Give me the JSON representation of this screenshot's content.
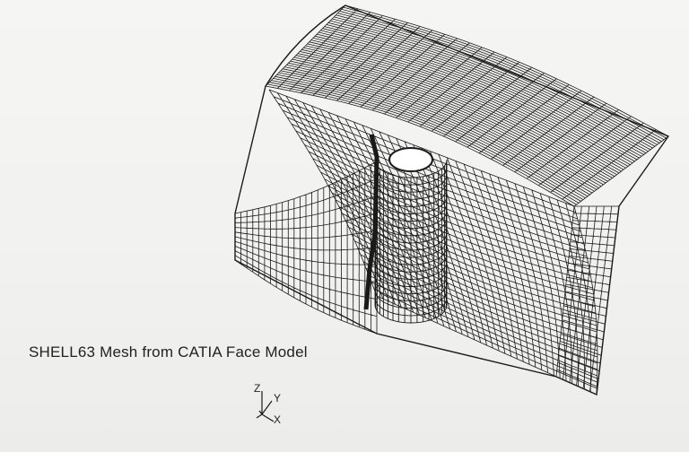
{
  "caption": "SHELL63 Mesh  from CATIA Face Model",
  "triad": {
    "z_label": "Z",
    "y_label": "Y",
    "x_label": "X"
  },
  "colors": {
    "mesh_line": "#1a1a1a",
    "background": "#f3f3f1",
    "hole_fill": "#ffffff"
  }
}
